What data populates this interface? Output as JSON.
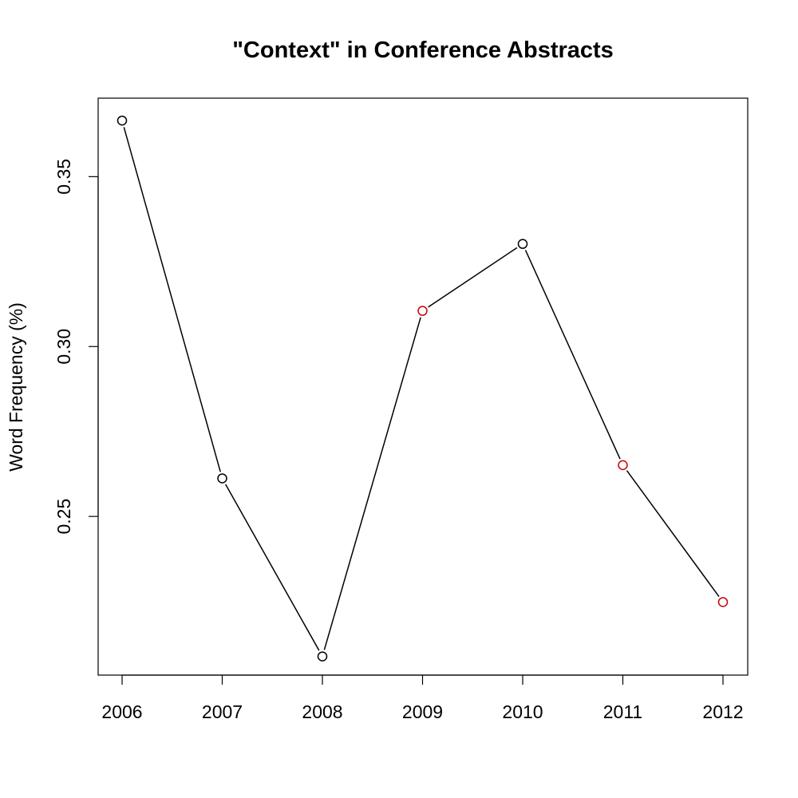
{
  "chart_data": {
    "type": "line",
    "title": "\"Context\" in Conference Abstracts",
    "xlabel": "",
    "ylabel": "Word Frequency (%)",
    "x": [
      "2006",
      "2007",
      "2008",
      "2009",
      "2010",
      "2011",
      "2012"
    ],
    "series": [
      {
        "values": [
          0.3665,
          0.2612,
          0.2088,
          0.3105,
          0.3302,
          0.2651,
          0.2248
        ],
        "point_colors": [
          "#000000",
          "#000000",
          "#000000",
          "#cc0000",
          "#000000",
          "#cc0000",
          "#cc0000"
        ]
      }
    ],
    "ylim": [
      0.2033,
      0.3731
    ],
    "yticks": [
      "0.25",
      "0.30",
      "0.35"
    ],
    "grid": false,
    "line_color": "#000000"
  }
}
